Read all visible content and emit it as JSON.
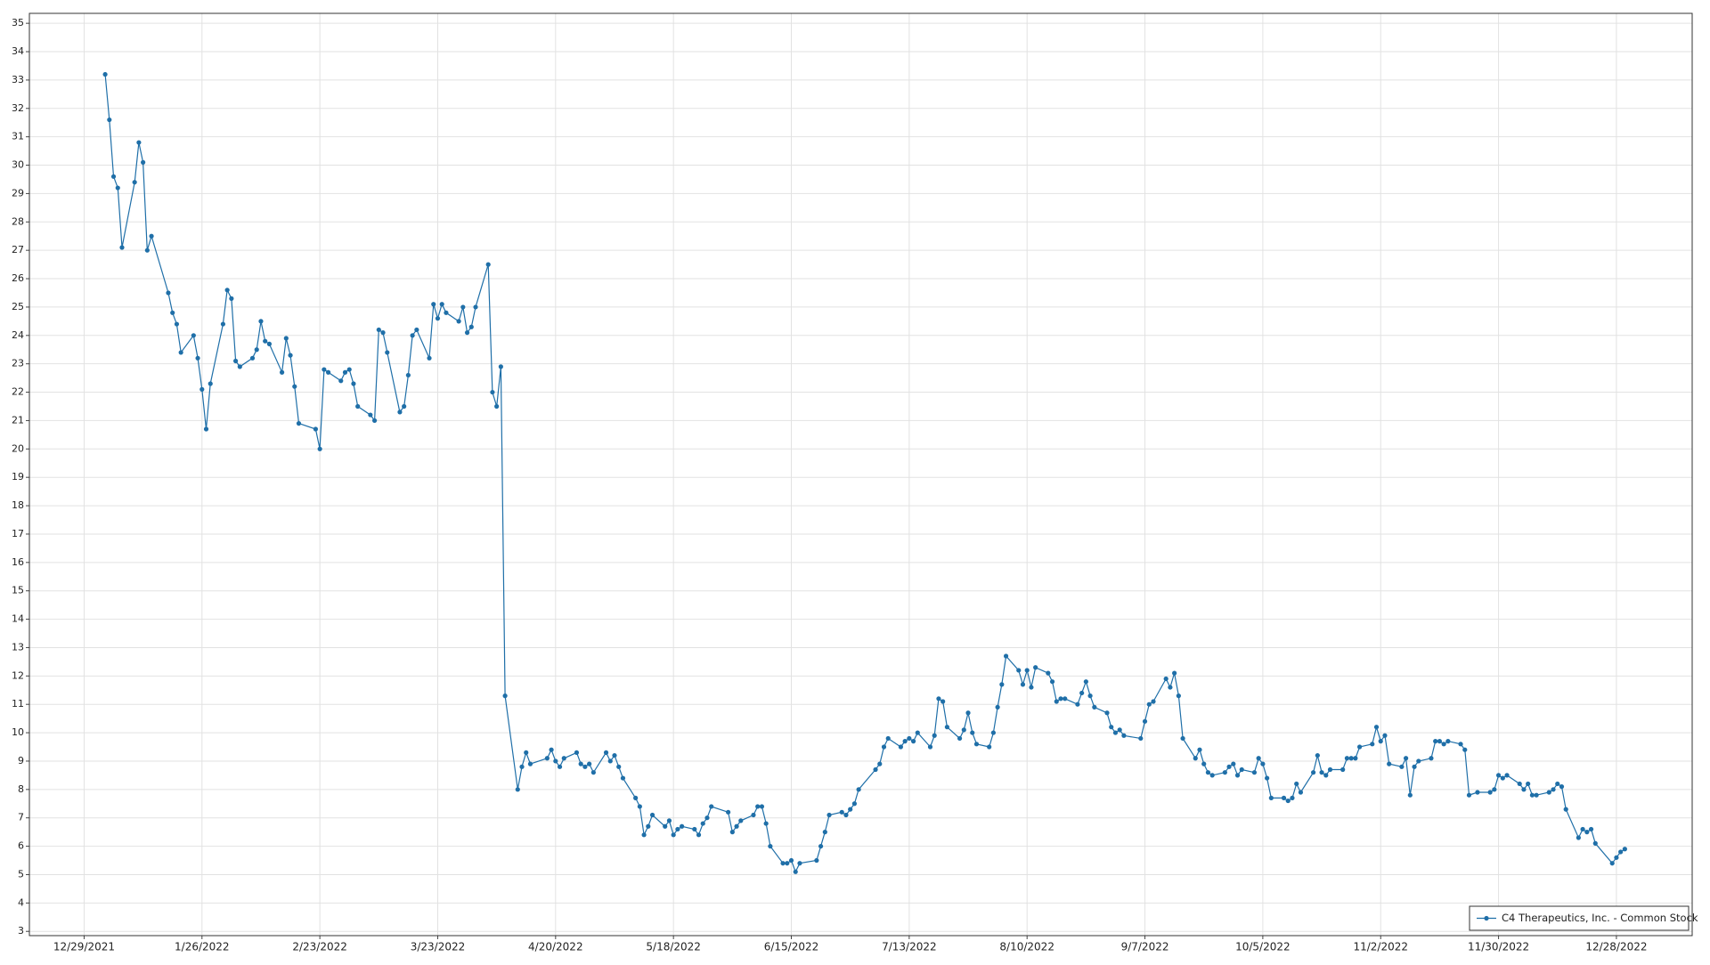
{
  "chart_data": {
    "type": "line",
    "xlim": [
      "12/16/2021",
      "1/15/2023"
    ],
    "xticks": [
      "12/29/2021",
      "1/26/2022",
      "2/23/2022",
      "3/23/2022",
      "4/20/2022",
      "5/18/2022",
      "6/15/2022",
      "7/13/2022",
      "8/10/2022",
      "9/7/2022",
      "10/5/2022",
      "11/2/2022",
      "11/30/2022",
      "12/28/2022"
    ],
    "ylim": [
      2.85,
      35.35
    ],
    "yticks": [
      3,
      4,
      5,
      6,
      7,
      8,
      9,
      10,
      11,
      12,
      13,
      14,
      15,
      16,
      17,
      18,
      19,
      20,
      21,
      22,
      23,
      24,
      25,
      26,
      27,
      28,
      29,
      30,
      31,
      32,
      33,
      34,
      35
    ],
    "grid": true,
    "legend": "lower right",
    "series": [
      {
        "name": "C4 Therapeutics, Inc. - Common Stock",
        "color": "#1f6fa8",
        "x": [
          "1/3/2022",
          "1/4/2022",
          "1/5/2022",
          "1/6/2022",
          "1/7/2022",
          "1/10/2022",
          "1/11/2022",
          "1/12/2022",
          "1/13/2022",
          "1/14/2022",
          "1/18/2022",
          "1/19/2022",
          "1/20/2022",
          "1/21/2022",
          "1/24/2022",
          "1/25/2022",
          "1/26/2022",
          "1/27/2022",
          "1/28/2022",
          "1/31/2022",
          "2/1/2022",
          "2/2/2022",
          "2/3/2022",
          "2/4/2022",
          "2/7/2022",
          "2/8/2022",
          "2/9/2022",
          "2/10/2022",
          "2/11/2022",
          "2/14/2022",
          "2/15/2022",
          "2/16/2022",
          "2/17/2022",
          "2/18/2022",
          "2/22/2022",
          "2/23/2022",
          "2/24/2022",
          "2/25/2022",
          "2/28/2022",
          "3/1/2022",
          "3/2/2022",
          "3/3/2022",
          "3/4/2022",
          "3/7/2022",
          "3/8/2022",
          "3/9/2022",
          "3/10/2022",
          "3/11/2022",
          "3/14/2022",
          "3/15/2022",
          "3/16/2022",
          "3/17/2022",
          "3/18/2022",
          "3/21/2022",
          "3/22/2022",
          "3/23/2022",
          "3/24/2022",
          "3/25/2022",
          "3/28/2022",
          "3/29/2022",
          "3/30/2022",
          "3/31/2022",
          "4/1/2022",
          "4/4/2022",
          "4/5/2022",
          "4/6/2022",
          "4/7/2022",
          "4/8/2022",
          "4/11/2022",
          "4/12/2022",
          "4/13/2022",
          "4/14/2022",
          "4/18/2022",
          "4/19/2022",
          "4/20/2022",
          "4/21/2022",
          "4/22/2022",
          "4/25/2022",
          "4/26/2022",
          "4/27/2022",
          "4/28/2022",
          "4/29/2022",
          "5/2/2022",
          "5/3/2022",
          "5/4/2022",
          "5/5/2022",
          "5/6/2022",
          "5/9/2022",
          "5/10/2022",
          "5/11/2022",
          "5/12/2022",
          "5/13/2022",
          "5/16/2022",
          "5/17/2022",
          "5/18/2022",
          "5/19/2022",
          "5/20/2022",
          "5/23/2022",
          "5/24/2022",
          "5/25/2022",
          "5/26/2022",
          "5/27/2022",
          "5/31/2022",
          "6/1/2022",
          "6/2/2022",
          "6/3/2022",
          "6/6/2022",
          "6/7/2022",
          "6/8/2022",
          "6/9/2022",
          "6/10/2022",
          "6/13/2022",
          "6/14/2022",
          "6/15/2022",
          "6/16/2022",
          "6/17/2022",
          "6/21/2022",
          "6/22/2022",
          "6/23/2022",
          "6/24/2022",
          "6/27/2022",
          "6/28/2022",
          "6/29/2022",
          "6/30/2022",
          "7/1/2022",
          "7/5/2022",
          "7/6/2022",
          "7/7/2022",
          "7/8/2022",
          "7/11/2022",
          "7/12/2022",
          "7/13/2022",
          "7/14/2022",
          "7/15/2022",
          "7/18/2022",
          "7/19/2022",
          "7/20/2022",
          "7/21/2022",
          "7/22/2022",
          "7/25/2022",
          "7/26/2022",
          "7/27/2022",
          "7/28/2022",
          "7/29/2022",
          "8/1/2022",
          "8/2/2022",
          "8/3/2022",
          "8/4/2022",
          "8/5/2022",
          "8/8/2022",
          "8/9/2022",
          "8/10/2022",
          "8/11/2022",
          "8/12/2022",
          "8/15/2022",
          "8/16/2022",
          "8/17/2022",
          "8/18/2022",
          "8/19/2022",
          "8/22/2022",
          "8/23/2022",
          "8/24/2022",
          "8/25/2022",
          "8/26/2022",
          "8/29/2022",
          "8/30/2022",
          "8/31/2022",
          "9/1/2022",
          "9/2/2022",
          "9/6/2022",
          "9/7/2022",
          "9/8/2022",
          "9/9/2022",
          "9/12/2022",
          "9/13/2022",
          "9/14/2022",
          "9/15/2022",
          "9/16/2022",
          "9/19/2022",
          "9/20/2022",
          "9/21/2022",
          "9/22/2022",
          "9/23/2022",
          "9/26/2022",
          "9/27/2022",
          "9/28/2022",
          "9/29/2022",
          "9/30/2022",
          "10/3/2022",
          "10/4/2022",
          "10/5/2022",
          "10/6/2022",
          "10/7/2022",
          "10/10/2022",
          "10/11/2022",
          "10/12/2022",
          "10/13/2022",
          "10/14/2022",
          "10/17/2022",
          "10/18/2022",
          "10/19/2022",
          "10/20/2022",
          "10/21/2022",
          "10/24/2022",
          "10/25/2022",
          "10/26/2022",
          "10/27/2022",
          "10/28/2022",
          "10/31/2022",
          "11/1/2022",
          "11/2/2022",
          "11/3/2022",
          "11/4/2022",
          "11/7/2022",
          "11/8/2022",
          "11/9/2022",
          "11/10/2022",
          "11/11/2022",
          "11/14/2022",
          "11/15/2022",
          "11/16/2022",
          "11/17/2022",
          "11/18/2022",
          "11/21/2022",
          "11/22/2022",
          "11/23/2022",
          "11/25/2022",
          "11/28/2022",
          "11/29/2022",
          "11/30/2022",
          "12/1/2022",
          "12/2/2022",
          "12/5/2022",
          "12/6/2022",
          "12/7/2022",
          "12/8/2022",
          "12/9/2022",
          "12/12/2022",
          "12/13/2022",
          "12/14/2022",
          "12/15/2022",
          "12/16/2022",
          "12/19/2022",
          "12/20/2022",
          "12/21/2022",
          "12/22/2022",
          "12/23/2022",
          "12/27/2022",
          "12/28/2022",
          "12/29/2022",
          "12/30/2022"
        ],
        "values": [
          33.2,
          31.6,
          29.6,
          29.2,
          27.1,
          29.4,
          30.8,
          30.1,
          27.0,
          27.5,
          25.5,
          24.8,
          24.4,
          23.4,
          24.0,
          23.2,
          22.1,
          20.7,
          22.3,
          24.4,
          25.6,
          25.3,
          23.1,
          22.9,
          23.2,
          23.5,
          24.5,
          23.8,
          23.7,
          22.7,
          23.9,
          23.3,
          22.2,
          20.9,
          20.7,
          20.0,
          22.8,
          22.7,
          22.4,
          22.7,
          22.8,
          22.3,
          21.5,
          21.2,
          21.0,
          24.2,
          24.1,
          23.4,
          21.3,
          21.5,
          22.6,
          24.0,
          24.2,
          23.2,
          25.1,
          24.6,
          25.1,
          24.8,
          24.5,
          25.0,
          24.1,
          24.3,
          25.0,
          26.5,
          22.0,
          21.5,
          22.9,
          11.3,
          8.0,
          8.8,
          9.3,
          8.9,
          9.1,
          9.4,
          9.0,
          8.8,
          9.1,
          9.3,
          8.9,
          8.8,
          8.9,
          8.6,
          9.3,
          9.0,
          9.2,
          8.8,
          8.4,
          7.7,
          7.4,
          6.4,
          6.7,
          7.1,
          6.7,
          6.9,
          6.4,
          6.6,
          6.7,
          6.6,
          6.4,
          6.8,
          7.0,
          7.4,
          7.2,
          6.5,
          6.7,
          6.9,
          7.1,
          7.4,
          7.4,
          6.8,
          6.0,
          5.4,
          5.4,
          5.5,
          5.1,
          5.4,
          5.5,
          6.0,
          6.5,
          7.1,
          7.2,
          7.1,
          7.3,
          7.5,
          8.0,
          8.7,
          8.9,
          9.5,
          9.8,
          9.5,
          9.7,
          9.8,
          9.7,
          10.0,
          9.5,
          9.9,
          11.2,
          11.1,
          10.2,
          9.8,
          10.1,
          10.7,
          10.0,
          9.6,
          9.5,
          10.0,
          10.9,
          11.7,
          12.7,
          12.2,
          11.7,
          12.2,
          11.6,
          12.3,
          12.1,
          11.8,
          11.1,
          11.2,
          11.2,
          11.0,
          11.4,
          11.8,
          11.3,
          10.9,
          10.7,
          10.2,
          10.0,
          10.1,
          9.9,
          9.8,
          10.4,
          11.0,
          11.1,
          11.9,
          11.6,
          12.1,
          11.3,
          9.8,
          9.1,
          9.4,
          8.9,
          8.6,
          8.5,
          8.6,
          8.8,
          8.9,
          8.5,
          8.7,
          8.6,
          9.1,
          8.9,
          8.4,
          7.7,
          7.7,
          7.6,
          7.7,
          8.2,
          7.9,
          8.6,
          9.2,
          8.6,
          8.5,
          8.7,
          8.7,
          9.1,
          9.1,
          9.1,
          9.5,
          9.6,
          10.2,
          9.7,
          9.9,
          8.9,
          8.8,
          9.1,
          7.8,
          8.8,
          9.0,
          9.1,
          9.7,
          9.7,
          9.6,
          9.7,
          9.6,
          9.4,
          7.8,
          7.9,
          7.9,
          8.0,
          8.5,
          8.4,
          8.5,
          8.2,
          8.0,
          8.2,
          7.8,
          7.8,
          7.9,
          8.0,
          8.2,
          8.1,
          7.3,
          6.3,
          6.6,
          6.5,
          6.6,
          6.1,
          5.4,
          5.6,
          5.8,
          5.9
        ]
      }
    ]
  }
}
